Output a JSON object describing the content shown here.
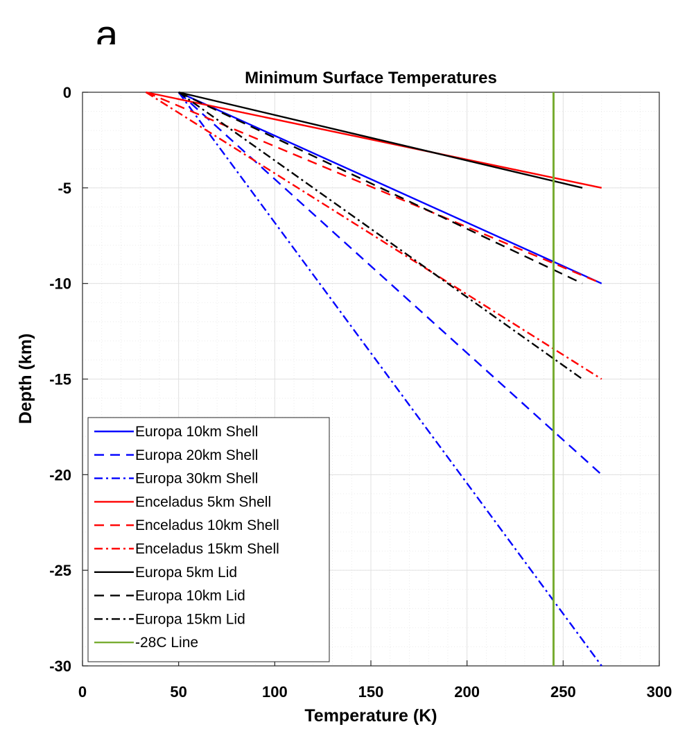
{
  "panel_label": "a",
  "chart_data": {
    "type": "line",
    "title": "Minimum Surface Temperatures",
    "xlabel": "Temperature (K)",
    "ylabel": "Depth (km)",
    "xlim": [
      0,
      300
    ],
    "ylim": [
      -30,
      0
    ],
    "xticks": [
      0,
      50,
      100,
      150,
      200,
      250,
      300
    ],
    "yticks": [
      0,
      -5,
      -10,
      -15,
      -20,
      -25,
      -30
    ],
    "grid": true,
    "minor_grid": true,
    "legend_position": "bottom-left",
    "series": [
      {
        "name": "Europa 10km Shell",
        "color": "#0000ff",
        "style": "solid",
        "x": [
          50,
          270
        ],
        "y": [
          0,
          -10
        ]
      },
      {
        "name": "Europa 20km Shell",
        "color": "#0000ff",
        "style": "dashed",
        "x": [
          50,
          270
        ],
        "y": [
          0,
          -20
        ]
      },
      {
        "name": "Europa 30km Shell",
        "color": "#0000ff",
        "style": "dashdot",
        "x": [
          50,
          270
        ],
        "y": [
          0,
          -30
        ]
      },
      {
        "name": "Enceladus 5km Shell",
        "color": "#ff0000",
        "style": "solid",
        "x": [
          33,
          270
        ],
        "y": [
          0,
          -5
        ]
      },
      {
        "name": "Enceladus 10km Shell",
        "color": "#ff0000",
        "style": "dashed",
        "x": [
          33,
          270
        ],
        "y": [
          0,
          -10
        ]
      },
      {
        "name": "Enceladus 15km Shell",
        "color": "#ff0000",
        "style": "dashdot",
        "x": [
          33,
          270
        ],
        "y": [
          0,
          -15
        ]
      },
      {
        "name": "Europa 5km Lid",
        "color": "#000000",
        "style": "solid",
        "x": [
          50,
          260
        ],
        "y": [
          0,
          -5
        ]
      },
      {
        "name": "Europa 10km Lid",
        "color": "#000000",
        "style": "dashed",
        "x": [
          50,
          260
        ],
        "y": [
          0,
          -10
        ]
      },
      {
        "name": "Europa 15km Lid",
        "color": "#000000",
        "style": "dashdot",
        "x": [
          50,
          260
        ],
        "y": [
          0,
          -15
        ]
      },
      {
        "name": "-28C Line",
        "color": "#77ac30",
        "style": "solid",
        "x": [
          245,
          245
        ],
        "y": [
          0,
          -30
        ]
      }
    ]
  }
}
